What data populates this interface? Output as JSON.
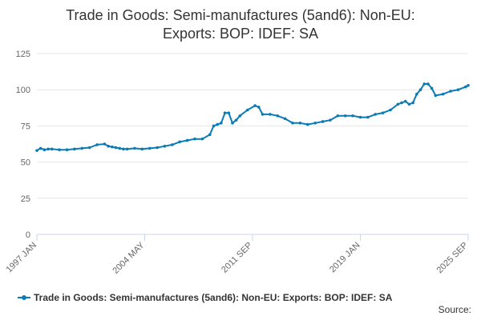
{
  "colors": {
    "series": "#0b7bb5",
    "grid": "#e6e6e6",
    "axis": "#ccd6eb"
  },
  "title_lines": [
    "Trade in Goods: Semi-manufactures (5and6): Non-EU:",
    "Exports: BOP: IDEF: SA"
  ],
  "source_label": "Source:",
  "chart_data": {
    "type": "line",
    "title": "Trade in Goods: Semi-manufactures (5and6): Non-EU: Exports: BOP: IDEF: SA",
    "xlabel": "",
    "ylabel": "",
    "x_ticks": [
      "1997 JAN",
      "2004 MAY",
      "2011 SEP",
      "2019 JAN",
      "2025 SEP"
    ],
    "y_ticks": [
      0,
      25,
      50,
      75,
      100,
      125
    ],
    "ylim": [
      0,
      125
    ],
    "xlim": [
      1997.0,
      2025.67
    ],
    "grid": true,
    "legend_position": "bottom",
    "series": [
      {
        "name": "Trade in Goods: Semi-manufactures (5and6): Non-EU: Exports: BOP: IDEF: SA",
        "x": [
          1997.0,
          1997.25,
          1997.5,
          1997.75,
          1998.0,
          1998.5,
          1999.0,
          1999.5,
          2000.0,
          2000.5,
          2001.0,
          2001.5,
          2001.75,
          2002.0,
          2002.25,
          2002.5,
          2002.75,
          2003.0,
          2003.5,
          2004.0,
          2004.5,
          2005.0,
          2005.5,
          2006.0,
          2006.5,
          2007.0,
          2007.5,
          2008.0,
          2008.5,
          2008.75,
          2009.0,
          2009.25,
          2009.5,
          2009.75,
          2010.0,
          2010.25,
          2010.5,
          2011.0,
          2011.5,
          2011.75,
          2012.0,
          2012.5,
          2013.0,
          2013.5,
          2014.0,
          2014.5,
          2015.0,
          2015.5,
          2016.0,
          2016.5,
          2017.0,
          2017.5,
          2018.0,
          2018.5,
          2019.0,
          2019.5,
          2020.0,
          2020.5,
          2021.0,
          2021.25,
          2021.5,
          2021.75,
          2022.0,
          2022.25,
          2022.5,
          2022.75,
          2023.0,
          2023.25,
          2023.5,
          2024.0,
          2024.5,
          2025.0,
          2025.5,
          2025.67
        ],
        "y": [
          58,
          59.5,
          58.5,
          59,
          59,
          58.5,
          58.5,
          59,
          59.5,
          60,
          62,
          62.5,
          61,
          60.5,
          60,
          59.5,
          59,
          59,
          59.5,
          59,
          59.5,
          60,
          61,
          62,
          64,
          65,
          66,
          66,
          69,
          75,
          76,
          77,
          84,
          84,
          77,
          79,
          82,
          86,
          89,
          88,
          83,
          83,
          82,
          80,
          77,
          77,
          76,
          77,
          78,
          79,
          82,
          82,
          82,
          81,
          81,
          83,
          84,
          86,
          90,
          91,
          92,
          90,
          91,
          97,
          100,
          104,
          104,
          101,
          96,
          97,
          99,
          100,
          102,
          103
        ]
      }
    ]
  }
}
